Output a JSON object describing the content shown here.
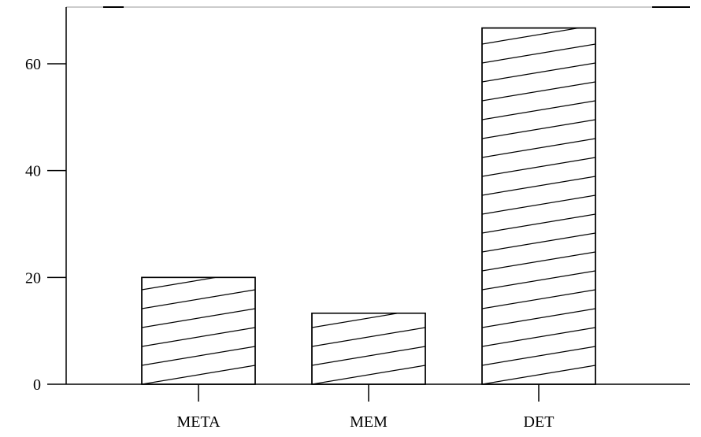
{
  "chart_data": {
    "type": "bar",
    "categories": [
      "META",
      "MEM",
      "DET"
    ],
    "values": [
      20,
      13.3,
      66.7
    ],
    "title": "",
    "xlabel": "",
    "ylabel": "",
    "ylim": [
      0,
      68
    ],
    "yticks": [
      0,
      20,
      40,
      60
    ],
    "ytick_labels": [
      "0",
      "20",
      "40",
      "60"
    ],
    "grid": false,
    "legend": "none",
    "bar_fill": "#ffffff",
    "bar_stroke": "#000000",
    "hatch": "diagonal"
  }
}
